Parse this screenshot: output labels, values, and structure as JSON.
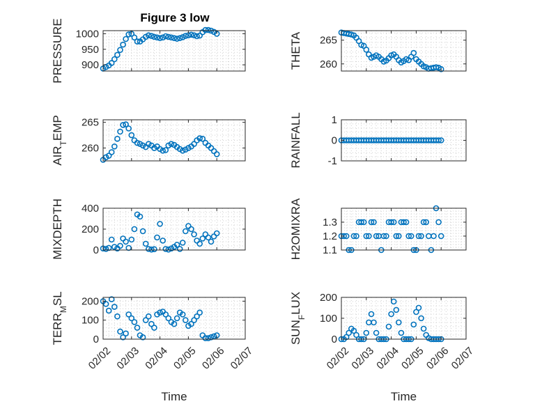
{
  "figure_title": "Figure 3 low",
  "colors": {
    "marker": "#0072BD",
    "axis": "#262626",
    "grid": "#d0d0d0",
    "background": "#ffffff"
  },
  "chart_data": [
    {
      "id": "pressure",
      "type": "scatter",
      "title": "Figure 3 low",
      "ylabel": "PRESSURE",
      "ylabel_parts": [
        {
          "t": "PRESSURE",
          "s": false
        }
      ],
      "xlabel": "",
      "ylim": [
        880,
        1010
      ],
      "yticks": [
        900,
        950,
        1000
      ],
      "xlim": [
        1,
        6
      ],
      "x": [
        1.0,
        1.1,
        1.2,
        1.3,
        1.4,
        1.5,
        1.6,
        1.7,
        1.8,
        1.9,
        2.0,
        2.1,
        2.2,
        2.3,
        2.4,
        2.5,
        2.6,
        2.7,
        2.8,
        2.9,
        3.0,
        3.1,
        3.2,
        3.3,
        3.4,
        3.5,
        3.6,
        3.7,
        3.8,
        3.9,
        4.0,
        4.1,
        4.2,
        4.3,
        4.4,
        4.5,
        4.6,
        4.7,
        4.8,
        4.9,
        5.0
      ],
      "y": [
        888,
        893,
        898,
        906,
        918,
        932,
        948,
        965,
        983,
        998,
        1000,
        988,
        975,
        975,
        982,
        990,
        995,
        993,
        990,
        988,
        986,
        988,
        992,
        990,
        988,
        986,
        984,
        986,
        989,
        993,
        995,
        997,
        995,
        992,
        994,
        1005,
        1012,
        1012,
        1010,
        1006,
        1000
      ]
    },
    {
      "id": "theta",
      "type": "scatter",
      "ylabel": "THETA",
      "ylabel_parts": [
        {
          "t": "THETA",
          "s": false
        }
      ],
      "xlabel": "",
      "ylim": [
        258.5,
        267
      ],
      "yticks": [
        260,
        265
      ],
      "xlim": [
        1,
        6
      ],
      "x": [
        1.0,
        1.1,
        1.2,
        1.3,
        1.4,
        1.5,
        1.6,
        1.7,
        1.8,
        1.9,
        2.0,
        2.1,
        2.2,
        2.3,
        2.4,
        2.5,
        2.6,
        2.7,
        2.8,
        2.9,
        3.0,
        3.1,
        3.2,
        3.3,
        3.4,
        3.5,
        3.6,
        3.7,
        3.8,
        3.9,
        4.0,
        4.1,
        4.2,
        4.3,
        4.4,
        4.5,
        4.6,
        4.7,
        4.8,
        4.9,
        5.0
      ],
      "y": [
        266.6,
        266.5,
        266.4,
        266.3,
        266.2,
        266.0,
        265.5,
        264.8,
        264.0,
        263.8,
        263.0,
        262.0,
        261.3,
        261.5,
        261.8,
        261.5,
        261.0,
        260.5,
        260.7,
        261.2,
        261.8,
        262.0,
        261.5,
        260.8,
        260.3,
        260.6,
        261.0,
        260.8,
        261.5,
        262.3,
        261.0,
        260.5,
        260.0,
        259.5,
        259.3,
        259.0,
        259.1,
        259.2,
        259.3,
        259.2,
        258.9
      ]
    },
    {
      "id": "air_temp",
      "type": "scatter",
      "ylabel": "AIR_TEMP",
      "ylabel_parts": [
        {
          "t": "AIR",
          "s": false
        },
        {
          "t": "T",
          "s": true
        },
        {
          "t": "EMP",
          "s": false
        }
      ],
      "xlabel": "",
      "ylim": [
        257.5,
        265.5
      ],
      "yticks": [
        260,
        265
      ],
      "xlim": [
        1,
        6
      ],
      "x": [
        1.0,
        1.1,
        1.2,
        1.3,
        1.4,
        1.5,
        1.6,
        1.7,
        1.8,
        1.9,
        2.0,
        2.1,
        2.2,
        2.3,
        2.4,
        2.5,
        2.6,
        2.7,
        2.8,
        2.9,
        3.0,
        3.1,
        3.2,
        3.3,
        3.4,
        3.5,
        3.6,
        3.7,
        3.8,
        3.9,
        4.0,
        4.1,
        4.2,
        4.3,
        4.4,
        4.5,
        4.6,
        4.7,
        4.8,
        4.9,
        5.0
      ],
      "y": [
        257.7,
        258.2,
        258.5,
        259.2,
        260.3,
        261.8,
        263.2,
        264.5,
        264.6,
        263.8,
        262.5,
        261.5,
        261.0,
        260.8,
        260.5,
        260.2,
        260.8,
        260.5,
        260.0,
        260.3,
        259.8,
        259.5,
        259.6,
        260.5,
        260.8,
        260.6,
        260.2,
        259.8,
        259.5,
        259.7,
        260.0,
        260.3,
        260.8,
        261.5,
        261.9,
        261.8,
        261.0,
        260.5,
        260.0,
        259.4,
        258.8
      ]
    },
    {
      "id": "rainfall",
      "type": "scatter",
      "ylabel": "RAINFALL",
      "ylabel_parts": [
        {
          "t": "RAINFALL",
          "s": false
        }
      ],
      "xlabel": "",
      "ylim": [
        -1,
        1
      ],
      "yticks": [
        -1,
        0,
        1
      ],
      "xlim": [
        1,
        6
      ],
      "x": [
        1.0,
        1.1,
        1.2,
        1.3,
        1.4,
        1.5,
        1.6,
        1.7,
        1.8,
        1.9,
        2.0,
        2.1,
        2.2,
        2.3,
        2.4,
        2.5,
        2.6,
        2.7,
        2.8,
        2.9,
        3.0,
        3.1,
        3.2,
        3.3,
        3.4,
        3.5,
        3.6,
        3.7,
        3.8,
        3.9,
        4.0,
        4.1,
        4.2,
        4.3,
        4.4,
        4.5,
        4.6,
        4.7,
        4.8,
        4.9,
        5.0
      ],
      "y": [
        0,
        0,
        0,
        0,
        0,
        0,
        0,
        0,
        0,
        0,
        0,
        0,
        0,
        0,
        0,
        0,
        0,
        0,
        0,
        0,
        0,
        0,
        0,
        0,
        0,
        0,
        0,
        0,
        0,
        0,
        0,
        0,
        0,
        0,
        0,
        0,
        0,
        0,
        0,
        0,
        0
      ]
    },
    {
      "id": "mixdepth",
      "type": "scatter",
      "ylabel": "MIXDEPTH",
      "ylabel_parts": [
        {
          "t": "MIXDEPTH",
          "s": false
        }
      ],
      "xlabel": "",
      "ylim": [
        0,
        400
      ],
      "yticks": [
        0,
        200,
        400
      ],
      "xlim": [
        1,
        6
      ],
      "x": [
        1.0,
        1.1,
        1.2,
        1.3,
        1.4,
        1.5,
        1.6,
        1.7,
        1.8,
        1.9,
        2.0,
        2.1,
        2.2,
        2.3,
        2.4,
        2.5,
        2.6,
        2.7,
        2.8,
        2.9,
        3.0,
        3.1,
        3.2,
        3.3,
        3.4,
        3.5,
        3.6,
        3.7,
        3.8,
        3.9,
        4.0,
        4.1,
        4.2,
        4.3,
        4.4,
        4.5,
        4.6,
        4.7,
        4.8,
        4.9,
        5.0
      ],
      "y": [
        15,
        10,
        20,
        100,
        30,
        15,
        40,
        110,
        80,
        20,
        100,
        200,
        340,
        320,
        180,
        60,
        10,
        5,
        8,
        120,
        250,
        90,
        10,
        5,
        15,
        30,
        50,
        10,
        70,
        180,
        230,
        200,
        150,
        90,
        60,
        110,
        150,
        120,
        80,
        130,
        160
      ]
    },
    {
      "id": "h2omixra",
      "type": "scatter",
      "ylabel": "H2OMIXRA",
      "ylabel_parts": [
        {
          "t": "H2OMIXRA",
          "s": false
        }
      ],
      "xlabel": "",
      "ylim": [
        1.1,
        1.4
      ],
      "yticks": [
        1.1,
        1.2,
        1.3
      ],
      "xlim": [
        1,
        6
      ],
      "x": [
        1.0,
        1.1,
        1.2,
        1.3,
        1.4,
        1.5,
        1.6,
        1.7,
        1.8,
        1.9,
        2.0,
        2.1,
        2.2,
        2.3,
        2.4,
        2.5,
        2.6,
        2.7,
        2.8,
        2.9,
        3.0,
        3.1,
        3.2,
        3.3,
        3.4,
        3.5,
        3.6,
        3.7,
        3.8,
        3.9,
        4.0,
        4.1,
        4.2,
        4.3,
        4.4,
        4.5,
        4.6,
        4.7,
        4.8,
        4.9,
        5.0
      ],
      "y": [
        1.2,
        1.2,
        1.2,
        1.1,
        1.1,
        1.2,
        1.2,
        1.3,
        1.3,
        1.3,
        1.2,
        1.2,
        1.3,
        1.3,
        1.2,
        1.2,
        1.1,
        1.2,
        1.2,
        1.3,
        1.3,
        1.3,
        1.2,
        1.2,
        1.3,
        1.3,
        1.3,
        1.2,
        1.2,
        1.1,
        1.1,
        1.2,
        1.2,
        1.3,
        1.3,
        1.2,
        1.1,
        1.2,
        1.4,
        1.3,
        1.2
      ]
    },
    {
      "id": "terr_msl",
      "type": "scatter",
      "ylabel": "TERR_MSL",
      "ylabel_parts": [
        {
          "t": "TERR",
          "s": false
        },
        {
          "t": "M",
          "s": true
        },
        {
          "t": "SL",
          "s": false
        }
      ],
      "xlabel": "Time",
      "ylim": [
        0,
        220
      ],
      "yticks": [
        0,
        100,
        200
      ],
      "xlim": [
        1,
        6
      ],
      "x": [
        1.0,
        1.1,
        1.2,
        1.3,
        1.4,
        1.5,
        1.6,
        1.7,
        1.8,
        1.9,
        2.0,
        2.1,
        2.2,
        2.3,
        2.4,
        2.5,
        2.6,
        2.7,
        2.8,
        2.9,
        3.0,
        3.1,
        3.2,
        3.3,
        3.4,
        3.5,
        3.6,
        3.7,
        3.8,
        3.9,
        4.0,
        4.1,
        4.2,
        4.3,
        4.4,
        4.5,
        4.6,
        4.7,
        4.8,
        4.9,
        5.0
      ],
      "y": [
        200,
        185,
        150,
        210,
        170,
        120,
        40,
        10,
        30,
        130,
        110,
        90,
        60,
        20,
        10,
        100,
        120,
        80,
        60,
        130,
        140,
        145,
        130,
        110,
        90,
        80,
        110,
        140,
        130,
        100,
        70,
        80,
        100,
        120,
        140,
        20,
        5,
        5,
        10,
        15,
        20
      ]
    },
    {
      "id": "sun_flux",
      "type": "scatter",
      "ylabel": "SUN_FLUX",
      "ylabel_parts": [
        {
          "t": "SUN",
          "s": false
        },
        {
          "t": "F",
          "s": true
        },
        {
          "t": "LUX",
          "s": false
        }
      ],
      "xlabel": "Time",
      "ylim": [
        0,
        200
      ],
      "yticks": [
        0,
        100,
        200
      ],
      "xlim": [
        1,
        6
      ],
      "x": [
        1.0,
        1.1,
        1.2,
        1.3,
        1.4,
        1.5,
        1.6,
        1.7,
        1.8,
        1.9,
        2.0,
        2.1,
        2.2,
        2.3,
        2.4,
        2.5,
        2.6,
        2.7,
        2.8,
        2.9,
        3.0,
        3.1,
        3.2,
        3.3,
        3.4,
        3.5,
        3.6,
        3.7,
        3.8,
        3.9,
        4.0,
        4.1,
        4.2,
        4.3,
        4.4,
        4.5,
        4.6,
        4.7,
        4.8,
        4.9,
        5.0
      ],
      "y": [
        0,
        0,
        10,
        30,
        50,
        40,
        20,
        0,
        0,
        0,
        30,
        80,
        120,
        80,
        30,
        0,
        0,
        0,
        0,
        60,
        120,
        180,
        140,
        80,
        30,
        0,
        0,
        0,
        0,
        70,
        130,
        150,
        100,
        50,
        20,
        5,
        0,
        0,
        0,
        0,
        0
      ]
    }
  ],
  "xticks": {
    "values": [
      1,
      2,
      3,
      4,
      5,
      6
    ],
    "labels": [
      "02/02",
      "02/03",
      "02/04",
      "02/05",
      "02/06",
      "02/07"
    ]
  }
}
